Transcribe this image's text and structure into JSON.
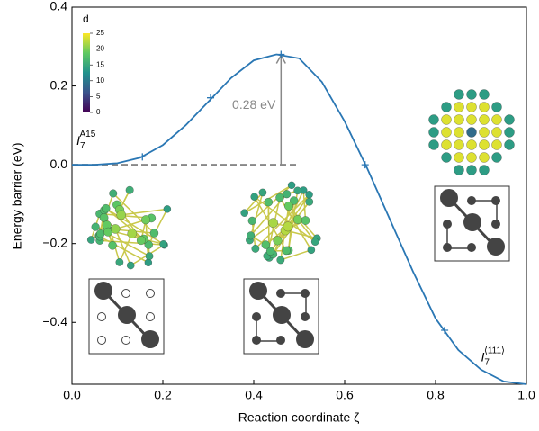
{
  "chart_data": {
    "type": "line",
    "x_label": "Reaction coordinate ζ",
    "y_label": "Energy barrier (eV)",
    "xlim": [
      0,
      1
    ],
    "ylim": [
      -0.557,
      0.4
    ],
    "xticks": [
      {
        "value": 0,
        "label": "0.0"
      },
      {
        "value": 0.2,
        "label": "0.2"
      },
      {
        "value": 0.4,
        "label": "0.4"
      },
      {
        "value": 0.6,
        "label": "0.6"
      },
      {
        "value": 0.8,
        "label": "0.8"
      },
      {
        "value": 1,
        "label": "1.0"
      }
    ],
    "yticks": [
      {
        "value": 0.4,
        "label": "0.4"
      },
      {
        "value": 0.2,
        "label": "0.2"
      },
      {
        "value": 0,
        "label": "0.0"
      },
      {
        "value": -0.2,
        "label": "−0.2"
      },
      {
        "value": -0.4,
        "label": "−0.4"
      }
    ],
    "series": [
      {
        "color": "#2a77b4",
        "x": [
          0,
          0.05,
          0.1,
          0.15,
          0.2,
          0.25,
          0.3,
          0.35,
          0.4,
          0.45,
          0.5,
          0.55,
          0.6,
          0.65,
          0.7,
          0.75,
          0.8,
          0.85,
          0.9,
          0.95,
          1.0
        ],
        "values": [
          0,
          0,
          0.004,
          0.018,
          0.05,
          0.1,
          0.16,
          0.22,
          0.265,
          0.28,
          0.27,
          0.21,
          0.11,
          -0.01,
          -0.14,
          -0.27,
          -0.39,
          -0.47,
          -0.52,
          -0.55,
          -0.557
        ]
      },
      {
        "color": "#2a77b4",
        "marker": "+",
        "x": [
          0.155,
          0.305,
          0.46,
          0.645,
          0.82
        ],
        "values": [
          0.02,
          0.17,
          0.28,
          0,
          -0.42
        ]
      }
    ],
    "barrier": {
      "label": "0.28 eV",
      "x": 0.46,
      "from": 0,
      "to": 0.28,
      "baseline_end": 0.5
    },
    "annotations": [
      {
        "base": "I",
        "sub": "7",
        "sup": "A15",
        "x": 0.01,
        "y": 0.06
      },
      {
        "base": "I",
        "sub": "7",
        "sup": "⟨111⟩",
        "x": 0.9,
        "y": -0.49
      }
    ],
    "colorbar": {
      "label": "d",
      "ticks": [
        0,
        5,
        10,
        15,
        20,
        25
      ],
      "lim": [
        0,
        25
      ]
    }
  }
}
